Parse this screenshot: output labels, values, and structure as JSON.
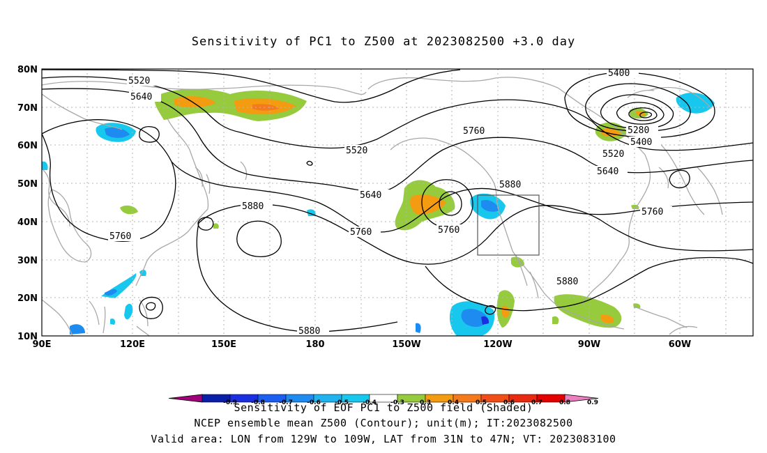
{
  "title": "Sensitivity of PC1 to Z500 at 2023082500 +3.0 day",
  "axes": {
    "lat_labels": [
      "80N",
      "70N",
      "60N",
      "50N",
      "40N",
      "30N",
      "20N",
      "10N"
    ],
    "lon_labels": [
      "90E",
      "120E",
      "150E",
      "180",
      "150W",
      "120W",
      "90W",
      "60W"
    ]
  },
  "contour_labels": [
    "5400",
    "5520",
    "5640",
    "5280",
    "5400",
    "5520",
    "5640",
    "5760",
    "5520",
    "5640",
    "5760",
    "5760",
    "5880",
    "5880",
    "5760",
    "5760",
    "5880",
    "5880"
  ],
  "colorbar": {
    "ticks": [
      "-0.9",
      "-0.8",
      "-0.7",
      "-0.6",
      "-0.5",
      "-0.4",
      "-0.3",
      "0.3",
      "0.4",
      "0.5",
      "0.6",
      "0.7",
      "0.8",
      "0.9"
    ],
    "colors": [
      "#a0007a",
      "#0a1fa8",
      "#1a2fe0",
      "#1b5ef0",
      "#1e8bf0",
      "#21b3ef",
      "#17c7ee",
      "#ffffff",
      "#95cb3d",
      "#f39c12",
      "#f57a1b",
      "#f04e16",
      "#e82a10",
      "#e50000",
      "#ee7fbe"
    ]
  },
  "colors": {
    "contour": "#000000",
    "coastline": "#a8a8a8",
    "grid": "#b4b4b4",
    "box": "#555555"
  },
  "footer": {
    "line1": "Sensitivity of EOF PC1 to Z500 field (Shaded)",
    "line2": "NCEP ensemble mean Z500 (Contour); unit(m); IT:2023082500",
    "line3": "Valid area: LON from 129W to 109W, LAT from 31N to 47N; VT: 2023083100"
  }
}
